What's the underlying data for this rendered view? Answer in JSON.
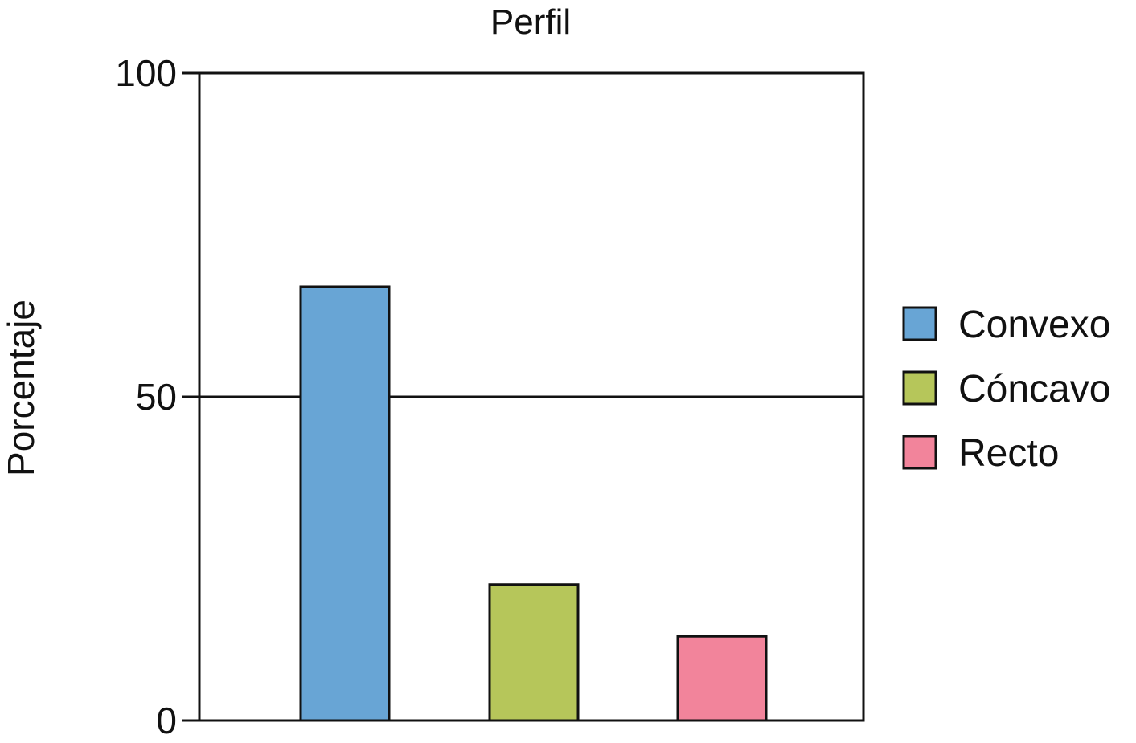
{
  "chart_data": {
    "type": "bar",
    "title": "Perfil",
    "xlabel": "",
    "ylabel": "Porcentaje",
    "ylim": [
      0,
      100
    ],
    "yticks": [
      "0",
      "50",
      "100"
    ],
    "reference_line": 50,
    "grid": false,
    "legend_position": "right",
    "categories": [
      "Convexo",
      "Cóncavo",
      "Recto"
    ],
    "values": [
      67,
      21,
      13
    ],
    "colors": [
      "#68a5d5",
      "#b6c65a",
      "#f2849b"
    ]
  }
}
